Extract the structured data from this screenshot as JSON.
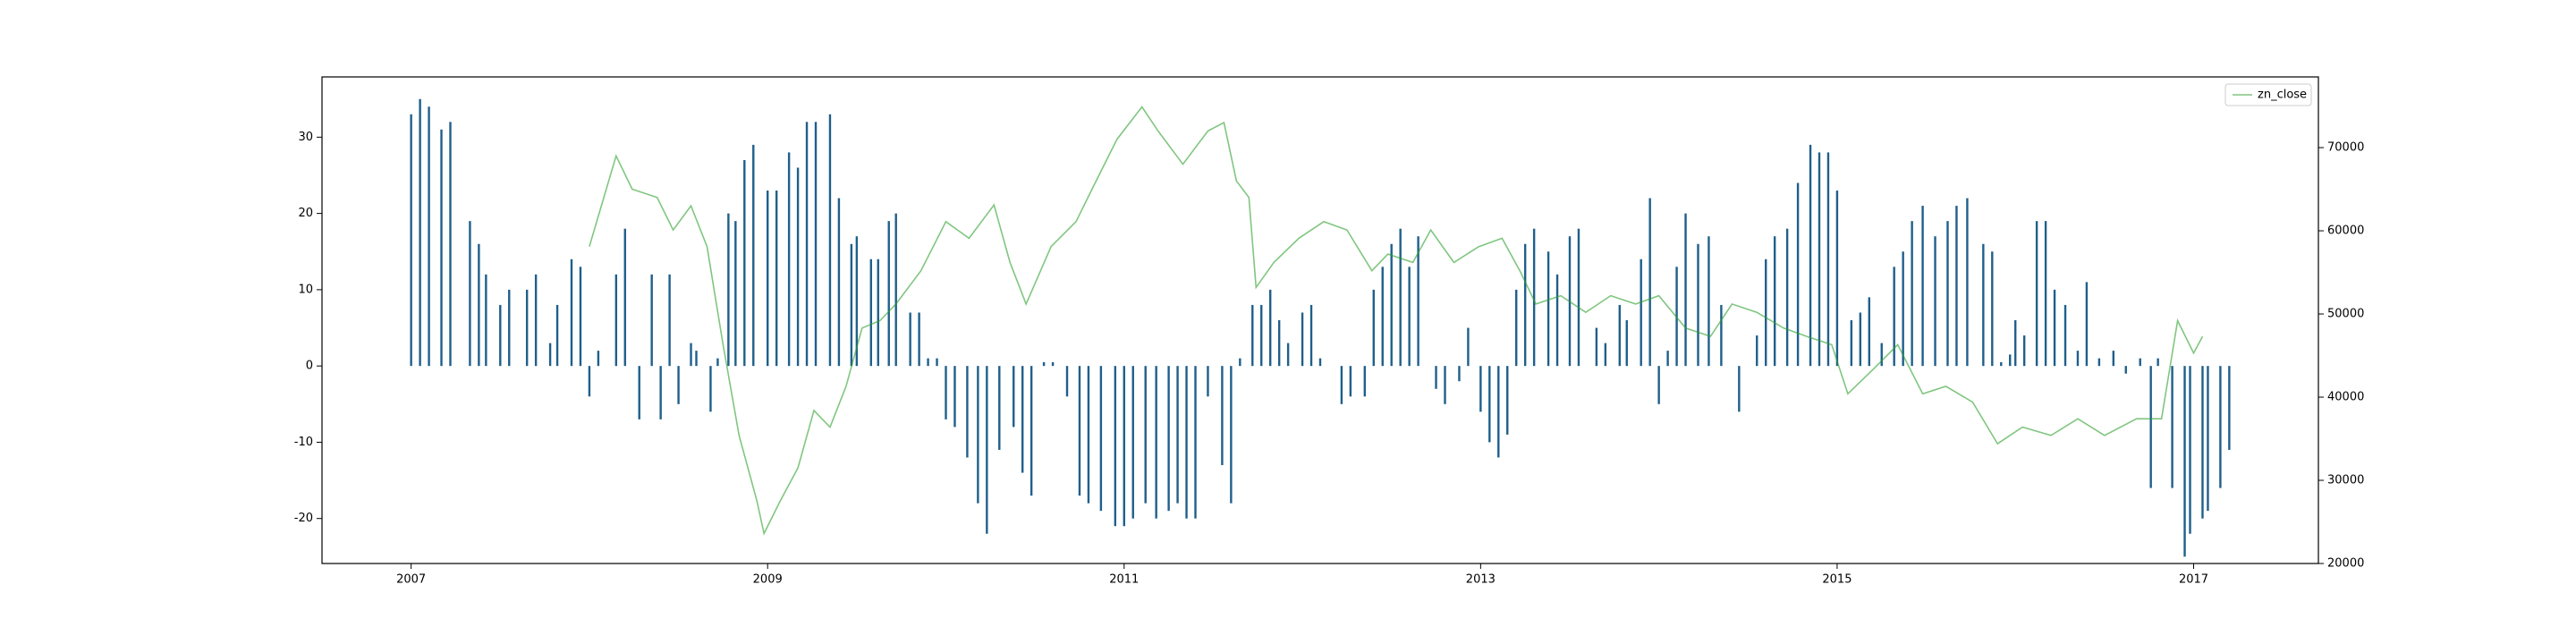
{
  "chart_data": {
    "type": "bar",
    "xlim": [
      2006.5,
      2017.7
    ],
    "xticks": [
      2007,
      2009,
      2011,
      2013,
      2015,
      2017
    ],
    "ylim": [
      -25.9,
      37.9
    ],
    "yticks": [
      -20,
      -10,
      0,
      10,
      20,
      30
    ],
    "y2lim": [
      20000,
      78500
    ],
    "y2ticks": [
      20000,
      30000,
      40000,
      50000,
      60000,
      70000
    ],
    "grid": false,
    "legend": "upper right",
    "series": [
      {
        "type": "bar",
        "color": "#1f5f8b",
        "x": [
          2007.0,
          2007.05,
          2007.1,
          2007.17,
          2007.22,
          2007.33,
          2007.38,
          2007.42,
          2007.5,
          2007.55,
          2007.65,
          2007.7,
          2007.78,
          2007.82,
          2007.9,
          2007.95,
          2008.0,
          2008.05,
          2008.15,
          2008.2,
          2008.28,
          2008.35,
          2008.4,
          2008.45,
          2008.5,
          2008.57,
          2008.6,
          2008.68,
          2008.72,
          2008.78,
          2008.82,
          2008.87,
          2008.92,
          2009.0,
          2009.05,
          2009.12,
          2009.17,
          2009.22,
          2009.27,
          2009.35,
          2009.4,
          2009.47,
          2009.5,
          2009.58,
          2009.62,
          2009.68,
          2009.72,
          2009.8,
          2009.85,
          2009.9,
          2009.95,
          2010.0,
          2010.05,
          2010.12,
          2010.18,
          2010.23,
          2010.3,
          2010.38,
          2010.43,
          2010.48,
          2010.55,
          2010.6,
          2010.68,
          2010.75,
          2010.8,
          2010.87,
          2010.95,
          2011.0,
          2011.05,
          2011.12,
          2011.18,
          2011.25,
          2011.3,
          2011.35,
          2011.4,
          2011.47,
          2011.55,
          2011.6,
          2011.65,
          2011.72,
          2011.77,
          2011.82,
          2011.87,
          2011.92,
          2012.0,
          2012.05,
          2012.1,
          2012.22,
          2012.27,
          2012.35,
          2012.4,
          2012.45,
          2012.5,
          2012.55,
          2012.6,
          2012.65,
          2012.75,
          2012.8,
          2012.88,
          2012.93,
          2013.0,
          2013.05,
          2013.1,
          2013.15,
          2013.2,
          2013.25,
          2013.3,
          2013.38,
          2013.43,
          2013.5,
          2013.55,
          2013.65,
          2013.7,
          2013.78,
          2013.82,
          2013.9,
          2013.95,
          2014.0,
          2014.05,
          2014.1,
          2014.15,
          2014.22,
          2014.28,
          2014.35,
          2014.45,
          2014.55,
          2014.6,
          2014.65,
          2014.72,
          2014.78,
          2014.85,
          2014.9,
          2014.95,
          2015.0,
          2015.08,
          2015.13,
          2015.18,
          2015.25,
          2015.32,
          2015.37,
          2015.42,
          2015.48,
          2015.55,
          2015.62,
          2015.67,
          2015.73,
          2015.82,
          2015.87,
          2015.92,
          2015.97,
          2016.0,
          2016.05,
          2016.12,
          2016.17,
          2016.22,
          2016.28,
          2016.35,
          2016.4,
          2016.47,
          2016.55,
          2016.62,
          2016.7,
          2016.76,
          2016.8,
          2016.88,
          2016.95,
          2016.98,
          2017.05,
          2017.08,
          2017.15,
          2017.2
        ],
        "values": [
          33,
          35,
          34,
          31,
          32,
          19,
          16,
          12,
          8,
          10,
          10,
          12,
          3,
          8,
          14,
          13,
          -4,
          2,
          12,
          18,
          -7,
          12,
          -7,
          12,
          -5,
          3,
          2,
          -6,
          1,
          20,
          19,
          27,
          29,
          23,
          23,
          28,
          26,
          32,
          32,
          33,
          22,
          16,
          17,
          14,
          14,
          19,
          20,
          7,
          7,
          1,
          1,
          -7,
          -8,
          -12,
          -18,
          -22,
          -11,
          -8,
          -14,
          -17,
          0.5,
          0.5,
          -4,
          -17,
          -18,
          -19,
          -21,
          -21,
          -20,
          -18,
          -20,
          -19,
          -18,
          -20,
          -20,
          -4,
          -13,
          -18,
          1,
          8,
          8,
          10,
          6,
          3,
          7,
          8,
          1,
          -5,
          -4,
          -4,
          10,
          13,
          16,
          18,
          13,
          17,
          -3,
          -5,
          -2,
          5,
          -6,
          -10,
          -12,
          -9,
          10,
          16,
          18,
          15,
          12,
          17,
          18,
          5,
          3,
          8,
          6,
          14,
          22,
          -5,
          2,
          13,
          20,
          16,
          17,
          8,
          -6,
          4,
          14,
          17,
          18,
          24,
          29,
          28,
          28,
          23,
          6,
          7,
          9,
          3,
          13,
          15,
          19,
          21,
          17,
          19,
          21,
          22,
          16,
          15,
          0.5,
          1.5,
          6,
          4,
          19,
          19,
          10,
          8,
          2,
          11,
          1,
          2,
          -1,
          1,
          -16,
          1,
          -16,
          -25,
          -22,
          -20,
          -19,
          -16,
          -11
        ]
      },
      {
        "type": "line",
        "name": "zn_close",
        "color": "#2ca02c",
        "axis": "y2",
        "x": [
          2008.0,
          2008.15,
          2008.24,
          2008.38,
          2008.47,
          2008.57,
          2008.66,
          2008.75,
          2008.84,
          2008.94,
          2008.98,
          2009.07,
          2009.17,
          2009.26,
          2009.35,
          2009.44,
          2009.53,
          2009.63,
          2009.72,
          2009.86,
          2010.0,
          2010.13,
          2010.27,
          2010.36,
          2010.45,
          2010.59,
          2010.73,
          2010.82,
          2010.96,
          2011.1,
          2011.19,
          2011.33,
          2011.47,
          2011.56,
          2011.63,
          2011.7,
          2011.74,
          2011.84,
          2011.98,
          2012.12,
          2012.25,
          2012.39,
          2012.48,
          2012.62,
          2012.72,
          2012.85,
          2012.99,
          2013.12,
          2013.22,
          2013.31,
          2013.45,
          2013.59,
          2013.73,
          2013.87,
          2014.0,
          2014.15,
          2014.29,
          2014.41,
          2014.55,
          2014.7,
          2014.83,
          2014.97,
          2015.06,
          2015.2,
          2015.34,
          2015.48,
          2015.61,
          2015.76,
          2015.9,
          2016.04,
          2016.2,
          2016.35,
          2016.5,
          2016.68,
          2016.82,
          2016.91,
          2017.0,
          2017.05
        ],
        "values": [
          58100,
          69000,
          65000,
          64000,
          60100,
          63000,
          58100,
          46300,
          35400,
          27500,
          23600,
          27500,
          31500,
          38400,
          36400,
          41300,
          48300,
          49200,
          51200,
          55200,
          61100,
          59100,
          63100,
          56200,
          51200,
          58100,
          61100,
          65000,
          71000,
          74900,
          72000,
          68000,
          72000,
          73000,
          66000,
          64000,
          53200,
          56200,
          59100,
          61100,
          60100,
          55200,
          57200,
          56200,
          60100,
          56200,
          58100,
          59100,
          55200,
          51200,
          52200,
          50200,
          52200,
          51200,
          52200,
          48300,
          47300,
          51200,
          50200,
          48300,
          47300,
          46300,
          40400,
          43300,
          46300,
          40400,
          41300,
          39400,
          34400,
          36400,
          35400,
          37400,
          35400,
          37400,
          37400,
          49200,
          45300,
          47300
        ]
      }
    ]
  }
}
